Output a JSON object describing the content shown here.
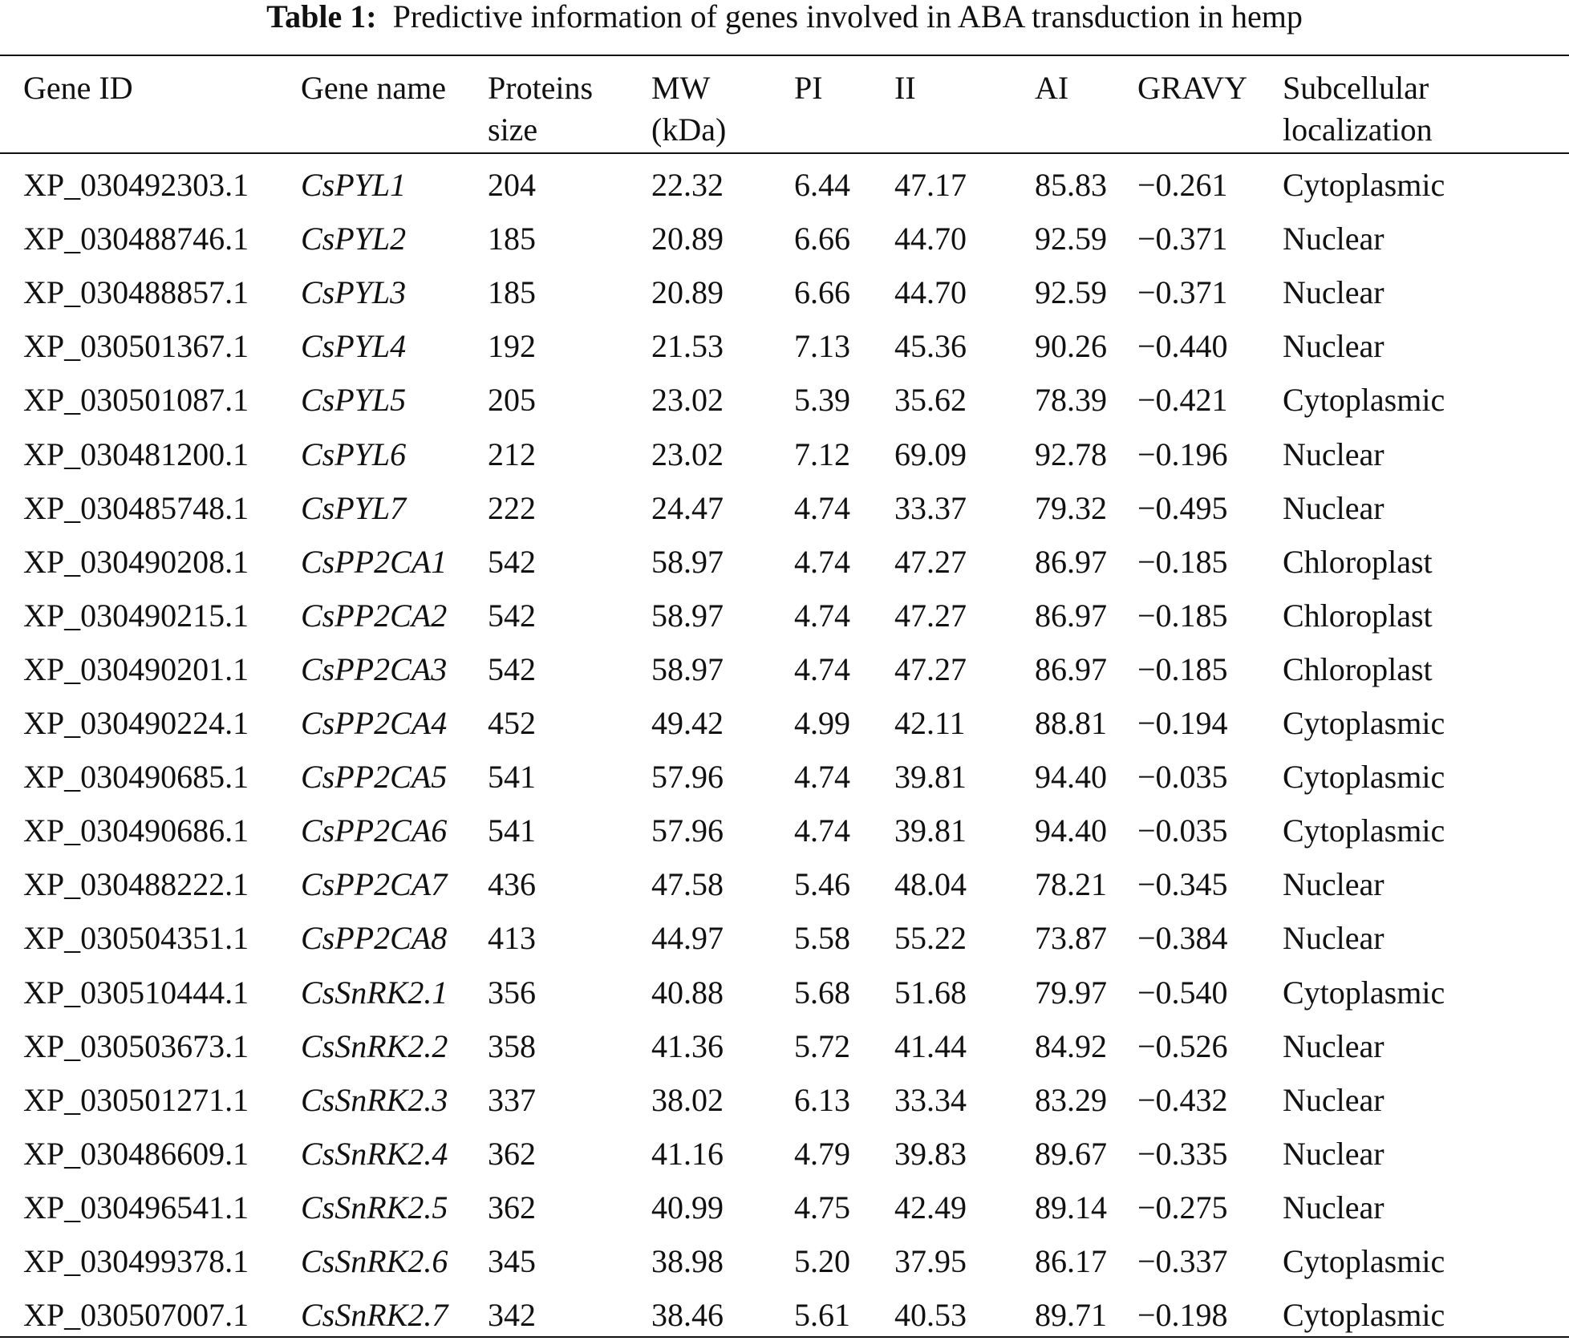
{
  "caption": {
    "label": "Table 1:",
    "text": "Predictive information of genes involved in ABA transduction in hemp"
  },
  "table": {
    "header": [
      [
        "Gene ID"
      ],
      [
        "Gene name"
      ],
      [
        "Proteins",
        "size"
      ],
      [
        "MW",
        "(kDa)"
      ],
      [
        "PI"
      ],
      [
        "II"
      ],
      [
        "AI"
      ],
      [
        "GRAVY"
      ],
      [
        "Subcellular",
        "localization"
      ]
    ],
    "rows": [
      [
        "XP_030492303.1",
        "CsPYL1",
        "204",
        "22.32",
        "6.44",
        "47.17",
        "85.83",
        "−0.261",
        "Cytoplasmic"
      ],
      [
        "XP_030488746.1",
        "CsPYL2",
        "185",
        "20.89",
        "6.66",
        "44.70",
        "92.59",
        "−0.371",
        "Nuclear"
      ],
      [
        "XP_030488857.1",
        "CsPYL3",
        "185",
        "20.89",
        "6.66",
        "44.70",
        "92.59",
        "−0.371",
        "Nuclear"
      ],
      [
        "XP_030501367.1",
        "CsPYL4",
        "192",
        "21.53",
        "7.13",
        "45.36",
        "90.26",
        "−0.440",
        "Nuclear"
      ],
      [
        "XP_030501087.1",
        "CsPYL5",
        "205",
        "23.02",
        "5.39",
        "35.62",
        "78.39",
        "−0.421",
        "Cytoplasmic"
      ],
      [
        "XP_030481200.1",
        "CsPYL6",
        "212",
        "23.02",
        "7.12",
        "69.09",
        "92.78",
        "−0.196",
        "Nuclear"
      ],
      [
        "XP_030485748.1",
        "CsPYL7",
        "222",
        "24.47",
        "4.74",
        "33.37",
        "79.32",
        "−0.495",
        "Nuclear"
      ],
      [
        "XP_030490208.1",
        "CsPP2CA1",
        "542",
        "58.97",
        "4.74",
        "47.27",
        "86.97",
        "−0.185",
        "Chloroplast"
      ],
      [
        "XP_030490215.1",
        "CsPP2CA2",
        "542",
        "58.97",
        "4.74",
        "47.27",
        "86.97",
        "−0.185",
        "Chloroplast"
      ],
      [
        "XP_030490201.1",
        "CsPP2CA3",
        "542",
        "58.97",
        "4.74",
        "47.27",
        "86.97",
        "−0.185",
        "Chloroplast"
      ],
      [
        "XP_030490224.1",
        "CsPP2CA4",
        "452",
        "49.42",
        "4.99",
        "42.11",
        "88.81",
        "−0.194",
        "Cytoplasmic"
      ],
      [
        "XP_030490685.1",
        "CsPP2CA5",
        "541",
        "57.96",
        "4.74",
        "39.81",
        "94.40",
        "−0.035",
        "Cytoplasmic"
      ],
      [
        "XP_030490686.1",
        "CsPP2CA6",
        "541",
        "57.96",
        "4.74",
        "39.81",
        "94.40",
        "−0.035",
        "Cytoplasmic"
      ],
      [
        "XP_030488222.1",
        "CsPP2CA7",
        "436",
        "47.58",
        "5.46",
        "48.04",
        "78.21",
        "−0.345",
        "Nuclear"
      ],
      [
        "XP_030504351.1",
        "CsPP2CA8",
        "413",
        "44.97",
        "5.58",
        "55.22",
        "73.87",
        "−0.384",
        "Nuclear"
      ],
      [
        "XP_030510444.1",
        "CsSnRK2.1",
        "356",
        "40.88",
        "5.68",
        "51.68",
        "79.97",
        "−0.540",
        "Cytoplasmic"
      ],
      [
        "XP_030503673.1",
        "CsSnRK2.2",
        "358",
        "41.36",
        "5.72",
        "41.44",
        "84.92",
        "−0.526",
        "Nuclear"
      ],
      [
        "XP_030501271.1",
        "CsSnRK2.3",
        "337",
        "38.02",
        "6.13",
        "33.34",
        "83.29",
        "−0.432",
        "Nuclear"
      ],
      [
        "XP_030486609.1",
        "CsSnRK2.4",
        "362",
        "41.16",
        "4.79",
        "39.83",
        "89.67",
        "−0.335",
        "Nuclear"
      ],
      [
        "XP_030496541.1",
        "CsSnRK2.5",
        "362",
        "40.99",
        "4.75",
        "42.49",
        "89.14",
        "−0.275",
        "Nuclear"
      ],
      [
        "XP_030499378.1",
        "CsSnRK2.6",
        "345",
        "38.98",
        "5.20",
        "37.95",
        "86.17",
        "−0.337",
        "Cytoplasmic"
      ],
      [
        "XP_030507007.1",
        "CsSnRK2.7",
        "342",
        "38.46",
        "5.61",
        "40.53",
        "89.71",
        "−0.198",
        "Cytoplasmic"
      ]
    ]
  }
}
